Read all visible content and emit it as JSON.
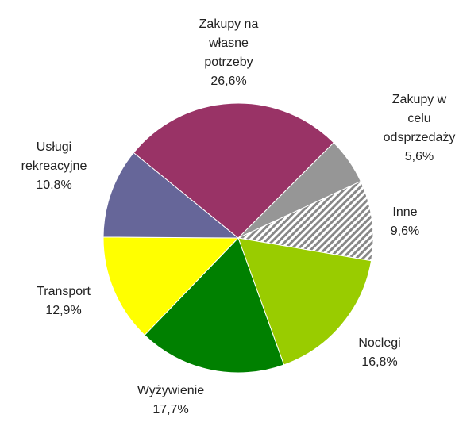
{
  "chart_data": {
    "type": "pie",
    "categories": [
      "Zakupy w celu odsprzedaży",
      "Inne",
      "Noclegi",
      "Wyżywienie",
      "Transport",
      "Usługi rekreacyjne",
      "Zakupy na własne potrzeby"
    ],
    "values": [
      5.6,
      9.6,
      16.8,
      17.7,
      12.9,
      10.8,
      26.6
    ],
    "value_labels": [
      "5,6%",
      "9,6%",
      "16,8%",
      "17,7%",
      "12,9%",
      "10,8%",
      "26,6%"
    ],
    "colors": [
      "#969696",
      "hatch",
      "#99cc00",
      "#008000",
      "#ffff00",
      "#666699",
      "#993366"
    ]
  }
}
